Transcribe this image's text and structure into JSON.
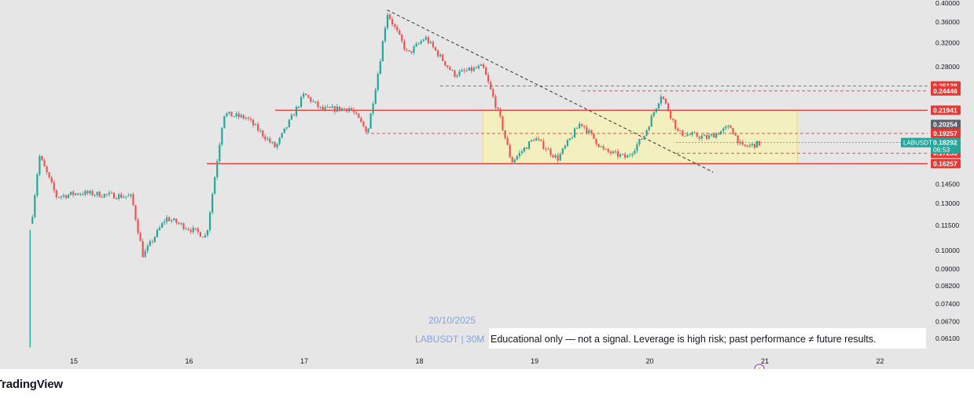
{
  "chart_data": {
    "type": "candlestick",
    "symbol": "LABUSDT",
    "timeframe_text": "LABUSDT | 30M",
    "date_watermark": "20/10/2025",
    "disclaimer": "Educational only — not a signal. Leverage is high risk; past performance ≠ future results.",
    "x_tick_labels": [
      "15",
      "16",
      "17",
      "18",
      "19",
      "20",
      "21",
      "22"
    ],
    "y_tick_labels": [
      "0.40000",
      "0.36000",
      "0.32000",
      "0.28000",
      "0.14500",
      "0.13000",
      "0.11500",
      "0.10000",
      "0.09000",
      "0.08200",
      "0.07400",
      "0.06700",
      "0.06100"
    ],
    "ohlc_approx": [
      {
        "day": 14.6,
        "price": 0.058
      },
      {
        "day": 14.62,
        "price": 0.11
      },
      {
        "day": 14.7,
        "price": 0.17
      },
      {
        "day": 14.85,
        "price": 0.135
      },
      {
        "day": 15.05,
        "price": 0.138
      },
      {
        "day": 15.5,
        "price": 0.135
      },
      {
        "day": 15.6,
        "price": 0.097
      },
      {
        "day": 15.8,
        "price": 0.12
      },
      {
        "day": 16.15,
        "price": 0.108
      },
      {
        "day": 16.3,
        "price": 0.215
      },
      {
        "day": 16.5,
        "price": 0.21
      },
      {
        "day": 16.75,
        "price": 0.178
      },
      {
        "day": 17.0,
        "price": 0.24
      },
      {
        "day": 17.15,
        "price": 0.22
      },
      {
        "day": 17.4,
        "price": 0.222
      },
      {
        "day": 17.55,
        "price": 0.194
      },
      {
        "day": 17.65,
        "price": 0.28
      },
      {
        "day": 17.72,
        "price": 0.38
      },
      {
        "day": 17.9,
        "price": 0.3
      },
      {
        "day": 18.05,
        "price": 0.33
      },
      {
        "day": 18.3,
        "price": 0.268
      },
      {
        "day": 18.55,
        "price": 0.28
      },
      {
        "day": 18.7,
        "price": 0.21
      },
      {
        "day": 18.8,
        "price": 0.164
      },
      {
        "day": 19.0,
        "price": 0.188
      },
      {
        "day": 19.2,
        "price": 0.167
      },
      {
        "day": 19.4,
        "price": 0.205
      },
      {
        "day": 19.6,
        "price": 0.175
      },
      {
        "day": 19.8,
        "price": 0.168
      },
      {
        "day": 19.95,
        "price": 0.19
      },
      {
        "day": 20.1,
        "price": 0.24
      },
      {
        "day": 20.25,
        "price": 0.193
      },
      {
        "day": 20.5,
        "price": 0.188
      },
      {
        "day": 20.7,
        "price": 0.2
      },
      {
        "day": 20.8,
        "price": 0.178
      },
      {
        "day": 20.95,
        "price": 0.182
      }
    ],
    "levels": [
      {
        "label": "0.25138",
        "price": 0.25138,
        "style": "dashed"
      },
      {
        "label": "0.24446",
        "price": 0.24446,
        "style": "dashed"
      },
      {
        "label": "0.21941",
        "price": 0.21941,
        "style": "solid"
      },
      {
        "label": "0.20254",
        "price": 0.20254,
        "style": "dark-badge"
      },
      {
        "label": "0.19257",
        "price": 0.19257,
        "style": "dashed"
      },
      {
        "label": "0.17233",
        "price": 0.17233,
        "style": "dashed"
      },
      {
        "label": "0.16257",
        "price": 0.16257,
        "style": "solid"
      }
    ],
    "current_price": {
      "label": "0.18292",
      "countdown": "06:53",
      "symbol_tag": "LABUSDT"
    },
    "range_box": {
      "from_day": 18.55,
      "to_day": 21.28,
      "top": 0.21941,
      "bottom": 0.16257
    },
    "trendline": {
      "from": {
        "day": 17.72,
        "price": 0.385
      },
      "to": {
        "day": 20.55,
        "price": 0.155
      }
    },
    "colors": {
      "up": "#26a69a",
      "down": "#ef5350",
      "level": "#e53935",
      "box": "#fff59d",
      "badge_dark": "#5d606b",
      "current": "#26a69a",
      "watermark": "#7fa4e8"
    },
    "y_scale": "log",
    "grid": false
  },
  "branding": {
    "logo_text": "TradingView"
  }
}
